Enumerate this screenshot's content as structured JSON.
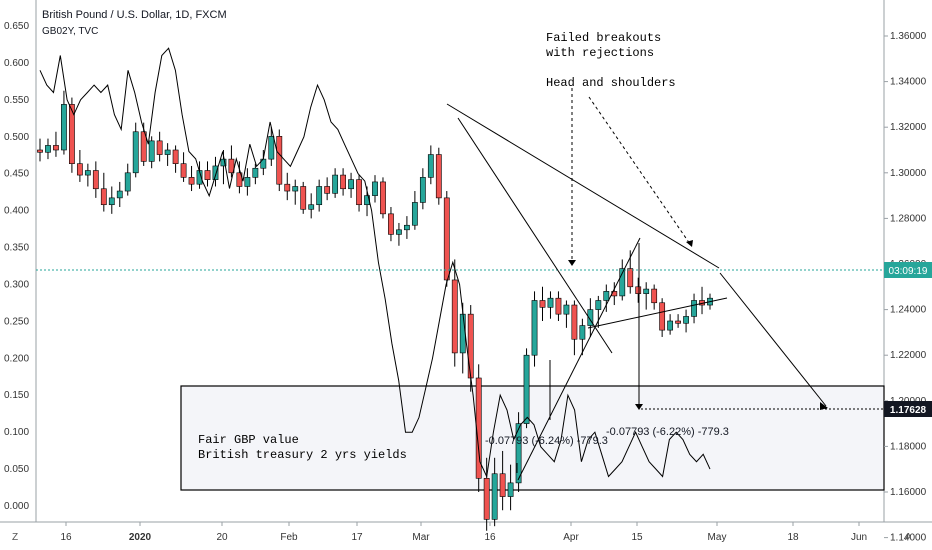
{
  "header": {
    "title": "British Pound / U.S. Dollar, 1D, FXCM",
    "subtitle": "GB02Y, TVC"
  },
  "annotations": {
    "top_note": [
      "Failed breakouts",
      "with rejections",
      "",
      "Head and shoulders"
    ],
    "box_note": [
      "Fair GBP value",
      "British treasury 2 yrs yields"
    ],
    "measure_1": "-0.07793 (-6.24%) -779.3",
    "measure_2": "-0.07793 (-6.22%) -779.3"
  },
  "price_label": {
    "current": "03:09:19",
    "target": "1.17628"
  },
  "axis_buttons": {
    "left": "Z",
    "right": "A"
  },
  "chart_data": {
    "type": "candlestick",
    "left_axis": {
      "series": "GB02Y, TVC",
      "min": 0.0,
      "max": 0.65,
      "ticks": [
        "0.650",
        "0.600",
        "0.550",
        "0.500",
        "0.450",
        "0.400",
        "0.350",
        "0.300",
        "0.250",
        "0.200",
        "0.150",
        "0.100",
        "0.050",
        "0.000"
      ]
    },
    "right_axis": {
      "series": "British Pound / U.S. Dollar",
      "min": 1.13,
      "max": 1.37,
      "ticks": [
        "1.36000",
        "1.34000",
        "1.32000",
        "1.30000",
        "1.28000",
        "1.26000",
        "1.24000",
        "1.22000",
        "1.20000",
        "1.18000",
        "1.16000",
        "1.14000"
      ]
    },
    "x_ticks": [
      "16",
      "2020",
      "20",
      "Feb",
      "17",
      "Mar",
      "16",
      "Apr",
      "15",
      "May",
      "18",
      "Jun"
    ],
    "candles": [
      [
        1.31,
        1.315,
        1.305,
        1.309
      ],
      [
        1.309,
        1.315,
        1.306,
        1.312
      ],
      [
        1.312,
        1.318,
        1.307,
        1.31
      ],
      [
        1.31,
        1.336,
        1.308,
        1.33
      ],
      [
        1.33,
        1.333,
        1.3,
        1.304
      ],
      [
        1.304,
        1.31,
        1.296,
        1.299
      ],
      [
        1.299,
        1.304,
        1.294,
        1.301
      ],
      [
        1.301,
        1.305,
        1.289,
        1.293
      ],
      [
        1.293,
        1.3,
        1.283,
        1.286
      ],
      [
        1.286,
        1.294,
        1.282,
        1.289
      ],
      [
        1.289,
        1.296,
        1.285,
        1.292
      ],
      [
        1.292,
        1.304,
        1.29,
        1.3
      ],
      [
        1.3,
        1.322,
        1.298,
        1.318
      ],
      [
        1.318,
        1.322,
        1.303,
        1.305
      ],
      [
        1.305,
        1.316,
        1.302,
        1.314
      ],
      [
        1.314,
        1.318,
        1.305,
        1.308
      ],
      [
        1.308,
        1.313,
        1.303,
        1.31
      ],
      [
        1.31,
        1.312,
        1.3,
        1.304
      ],
      [
        1.304,
        1.309,
        1.296,
        1.298
      ],
      [
        1.298,
        1.303,
        1.292,
        1.295
      ],
      [
        1.295,
        1.305,
        1.293,
        1.301
      ],
      [
        1.301,
        1.305,
        1.294,
        1.297
      ],
      [
        1.297,
        1.307,
        1.294,
        1.303
      ],
      [
        1.303,
        1.31,
        1.295,
        1.306
      ],
      [
        1.306,
        1.312,
        1.298,
        1.3
      ],
      [
        1.3,
        1.305,
        1.291,
        1.294
      ],
      [
        1.294,
        1.302,
        1.29,
        1.298
      ],
      [
        1.298,
        1.304,
        1.295,
        1.302
      ],
      [
        1.302,
        1.31,
        1.299,
        1.306
      ],
      [
        1.306,
        1.32,
        1.303,
        1.316
      ],
      [
        1.316,
        1.319,
        1.292,
        1.295
      ],
      [
        1.295,
        1.3,
        1.288,
        1.292
      ],
      [
        1.292,
        1.297,
        1.286,
        1.294
      ],
      [
        1.294,
        1.296,
        1.282,
        1.284
      ],
      [
        1.284,
        1.291,
        1.28,
        1.286
      ],
      [
        1.286,
        1.297,
        1.283,
        1.294
      ],
      [
        1.294,
        1.298,
        1.288,
        1.291
      ],
      [
        1.291,
        1.302,
        1.289,
        1.299
      ],
      [
        1.299,
        1.302,
        1.29,
        1.293
      ],
      [
        1.293,
        1.3,
        1.289,
        1.297
      ],
      [
        1.297,
        1.299,
        1.283,
        1.286
      ],
      [
        1.286,
        1.294,
        1.281,
        1.29
      ],
      [
        1.29,
        1.299,
        1.287,
        1.296
      ],
      [
        1.296,
        1.298,
        1.28,
        1.282
      ],
      [
        1.282,
        1.285,
        1.27,
        1.273
      ],
      [
        1.273,
        1.278,
        1.268,
        1.275
      ],
      [
        1.275,
        1.281,
        1.271,
        1.277
      ],
      [
        1.277,
        1.292,
        1.275,
        1.287
      ],
      [
        1.287,
        1.302,
        1.284,
        1.298
      ],
      [
        1.298,
        1.312,
        1.295,
        1.308
      ],
      [
        1.308,
        1.311,
        1.286,
        1.289
      ],
      [
        1.289,
        1.292,
        1.25,
        1.253
      ],
      [
        1.253,
        1.262,
        1.215,
        1.221
      ],
      [
        1.221,
        1.243,
        1.212,
        1.238
      ],
      [
        1.238,
        1.242,
        1.204,
        1.21
      ],
      [
        1.21,
        1.216,
        1.16,
        1.166
      ],
      [
        1.166,
        1.175,
        1.143,
        1.148
      ],
      [
        1.148,
        1.175,
        1.145,
        1.168
      ],
      [
        1.168,
        1.178,
        1.152,
        1.158
      ],
      [
        1.158,
        1.172,
        1.152,
        1.164
      ],
      [
        1.164,
        1.195,
        1.16,
        1.19
      ],
      [
        1.19,
        1.223,
        1.188,
        1.22
      ],
      [
        1.22,
        1.248,
        1.215,
        1.244
      ],
      [
        1.244,
        1.25,
        1.235,
        1.241
      ],
      [
        1.241,
        1.248,
        1.236,
        1.245
      ],
      [
        1.245,
        1.248,
        1.235,
        1.238
      ],
      [
        1.238,
        1.244,
        1.232,
        1.242
      ],
      [
        1.242,
        1.244,
        1.22,
        1.227
      ],
      [
        1.227,
        1.236,
        1.22,
        1.233
      ],
      [
        1.233,
        1.245,
        1.228,
        1.24
      ],
      [
        1.24,
        1.246,
        1.232,
        1.244
      ],
      [
        1.244,
        1.251,
        1.239,
        1.248
      ],
      [
        1.248,
        1.252,
        1.242,
        1.246
      ],
      [
        1.246,
        1.262,
        1.244,
        1.258
      ],
      [
        1.258,
        1.266,
        1.247,
        1.25
      ],
      [
        1.25,
        1.254,
        1.243,
        1.247
      ],
      [
        1.247,
        1.252,
        1.24,
        1.249
      ],
      [
        1.249,
        1.251,
        1.24,
        1.243
      ],
      [
        1.243,
        1.245,
        1.228,
        1.231
      ],
      [
        1.231,
        1.238,
        1.229,
        1.235
      ],
      [
        1.235,
        1.238,
        1.232,
        1.234
      ],
      [
        1.234,
        1.24,
        1.23,
        1.237
      ],
      [
        1.237,
        1.247,
        1.234,
        1.244
      ],
      [
        1.244,
        1.25,
        1.238,
        1.242
      ],
      [
        1.242,
        1.247,
        1.24,
        1.245
      ]
    ],
    "line": [
      0.59,
      0.57,
      0.56,
      0.61,
      0.55,
      0.53,
      0.55,
      0.56,
      0.57,
      0.56,
      0.57,
      0.53,
      0.51,
      0.59,
      0.56,
      0.52,
      0.49,
      0.56,
      0.61,
      0.62,
      0.59,
      0.53,
      0.48,
      0.47,
      0.44,
      0.42,
      0.45,
      0.48,
      0.43,
      0.47,
      0.44,
      0.49,
      0.46,
      0.47,
      0.52,
      0.48,
      0.47,
      0.46,
      0.48,
      0.5,
      0.54,
      0.57,
      0.55,
      0.52,
      0.51,
      0.49,
      0.47,
      0.45,
      0.44,
      0.4,
      0.33,
      0.28,
      0.22,
      0.17,
      0.1,
      0.1,
      0.12,
      0.16,
      0.2,
      0.25,
      0.3,
      0.33,
      0.3,
      0.22,
      0.15,
      0.06,
      0.04,
      0.1,
      0.15,
      0.13,
      0.09,
      0.11,
      0.12,
      0.11,
      0.08,
      0.07,
      0.06,
      0.09,
      0.15,
      0.13,
      0.06,
      0.09,
      0.1,
      0.07,
      0.04,
      0.05,
      0.06,
      0.08,
      0.1,
      0.08,
      0.06,
      0.05,
      0.04,
      0.09,
      0.1,
      0.09,
      0.07,
      0.06,
      0.07,
      0.05
    ],
    "colors": {
      "up": "#26a69a",
      "down": "#ef5350",
      "line": "#000000",
      "current_price_line": "#26a69a",
      "label_bg": "#26a69a"
    },
    "grid": false
  }
}
